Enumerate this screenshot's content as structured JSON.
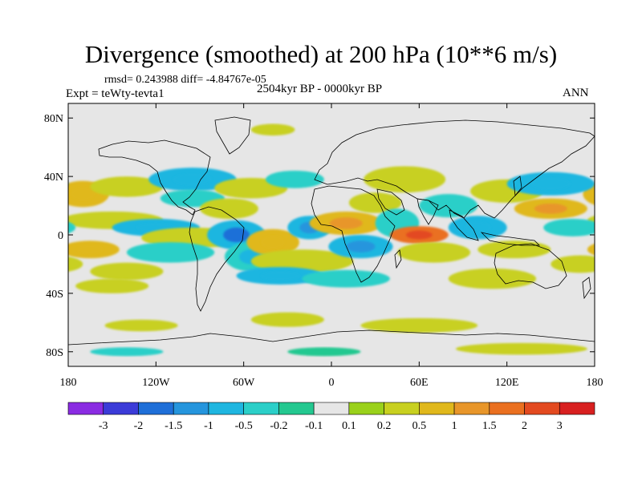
{
  "title": "Divergence (smoothed) at 200 hPa (10**6 m/s)",
  "stats": "rmsd= 0.243988 diff= -4.84767e-05",
  "experiment": "Expt = teWty-tevta1",
  "period": "2504kyr BP - 0000kyr BP",
  "season": "ANN",
  "chart_data": {
    "type": "heatmap",
    "projection": "cylindrical-equidistant",
    "lon_range": [
      -180,
      180
    ],
    "lat_range": [
      -90,
      90
    ],
    "xticks": [
      "180",
      "120W",
      "60W",
      "0",
      "60E",
      "120E",
      "180"
    ],
    "xtick_values": [
      -180,
      -120,
      -60,
      0,
      60,
      120,
      180
    ],
    "yticks": [
      "80N",
      "40N",
      "0",
      "40S",
      "80S"
    ],
    "ytick_values": [
      80,
      40,
      0,
      -40,
      -80
    ],
    "colorbar": {
      "labels": [
        "-3",
        "-2",
        "-1.5",
        "-1",
        "-0.5",
        "-0.2",
        "-0.1",
        "0.1",
        "0.2",
        "0.5",
        "1",
        "1.5",
        "2",
        "3"
      ],
      "levels": [
        -3,
        -2,
        -1.5,
        -1,
        -0.5,
        -0.2,
        -0.1,
        0.1,
        0.2,
        0.5,
        1,
        1.5,
        2,
        3
      ],
      "colors": [
        "#8a2be2",
        "#3b3bd8",
        "#1f6fd8",
        "#2595dd",
        "#1fb6e0",
        "#2bcfc8",
        "#24c890",
        "#e6e6e6",
        "#9ad11b",
        "#c8d020",
        "#e0b81c",
        "#e8962a",
        "#ea7020",
        "#e34a20",
        "#d82020"
      ]
    },
    "background_color": "#e6e6e6",
    "regions": [
      {
        "lon": -170,
        "lat": 28,
        "rlon": 18,
        "rlat": 9,
        "value": 0.5
      },
      {
        "lon": -150,
        "lat": 10,
        "rlon": 35,
        "rlat": 6,
        "value": 0.3
      },
      {
        "lon": -140,
        "lat": 33,
        "rlon": 25,
        "rlat": 7,
        "value": 0.2
      },
      {
        "lon": -95,
        "lat": 38,
        "rlon": 30,
        "rlat": 8,
        "value": -0.6
      },
      {
        "lon": -95,
        "lat": 25,
        "rlon": 22,
        "rlat": 6,
        "value": -0.3
      },
      {
        "lon": -70,
        "lat": 18,
        "rlon": 20,
        "rlat": 7,
        "value": 0.4
      },
      {
        "lon": -55,
        "lat": 32,
        "rlon": 25,
        "rlat": 7,
        "value": 0.3
      },
      {
        "lon": -25,
        "lat": 38,
        "rlon": 20,
        "rlat": 6,
        "value": -0.4
      },
      {
        "lon": -120,
        "lat": 5,
        "rlon": 30,
        "rlat": 6,
        "value": -0.6
      },
      {
        "lon": -95,
        "lat": -2,
        "rlon": 35,
        "rlat": 7,
        "value": 0.4
      },
      {
        "lon": -110,
        "lat": -12,
        "rlon": 30,
        "rlat": 7,
        "value": -0.3
      },
      {
        "lon": -165,
        "lat": -10,
        "rlon": 20,
        "rlat": 6,
        "value": 0.6
      },
      {
        "lon": -140,
        "lat": -25,
        "rlon": 25,
        "rlat": 6,
        "value": 0.3
      },
      {
        "lon": -65,
        "lat": 0,
        "rlon": 20,
        "rlat": 10,
        "value": -1.0
      },
      {
        "lon": -55,
        "lat": -15,
        "rlon": 18,
        "rlat": 10,
        "value": -0.5
      },
      {
        "lon": -40,
        "lat": -5,
        "rlon": 18,
        "rlat": 9,
        "value": 0.5
      },
      {
        "lon": -20,
        "lat": -18,
        "rlon": 35,
        "rlat": 8,
        "value": 0.3
      },
      {
        "lon": -35,
        "lat": -28,
        "rlon": 30,
        "rlat": 6,
        "value": -0.6
      },
      {
        "lon": -15,
        "lat": 5,
        "rlon": 15,
        "rlat": 8,
        "value": -0.8
      },
      {
        "lon": 10,
        "lat": 8,
        "rlon": 25,
        "rlat": 8,
        "value": 0.8
      },
      {
        "lon": 30,
        "lat": 22,
        "rlon": 18,
        "rlat": 7,
        "value": 0.4
      },
      {
        "lon": 20,
        "lat": -8,
        "rlon": 22,
        "rlat": 8,
        "value": -0.8
      },
      {
        "lon": 10,
        "lat": -30,
        "rlon": 30,
        "rlat": 6,
        "value": -0.4
      },
      {
        "lon": 45,
        "lat": 8,
        "rlon": 15,
        "rlat": 10,
        "value": -0.4
      },
      {
        "lon": 60,
        "lat": 0,
        "rlon": 20,
        "rlat": 6,
        "value": 1.6
      },
      {
        "lon": 70,
        "lat": -12,
        "rlon": 25,
        "rlat": 7,
        "value": 0.4
      },
      {
        "lon": 50,
        "lat": 38,
        "rlon": 28,
        "rlat": 9,
        "value": 0.4
      },
      {
        "lon": 80,
        "lat": 20,
        "rlon": 20,
        "rlat": 8,
        "value": -0.4
      },
      {
        "lon": 100,
        "lat": 5,
        "rlon": 20,
        "rlat": 8,
        "value": -0.6
      },
      {
        "lon": 120,
        "lat": 30,
        "rlon": 25,
        "rlat": 8,
        "value": 0.3
      },
      {
        "lon": 150,
        "lat": 35,
        "rlon": 30,
        "rlat": 8,
        "value": -0.6
      },
      {
        "lon": 150,
        "lat": 18,
        "rlon": 25,
        "rlat": 7,
        "value": 0.8
      },
      {
        "lon": 125,
        "lat": -10,
        "rlon": 25,
        "rlat": 6,
        "value": 0.4
      },
      {
        "lon": 110,
        "lat": -30,
        "rlon": 30,
        "rlat": 7,
        "value": 0.3
      },
      {
        "lon": 170,
        "lat": -20,
        "rlon": 20,
        "rlat": 6,
        "value": 0.3
      },
      {
        "lon": 165,
        "lat": 5,
        "rlon": 20,
        "rlat": 6,
        "value": -0.3
      },
      {
        "lon": -150,
        "lat": -35,
        "rlon": 25,
        "rlat": 5,
        "value": 0.2
      },
      {
        "lon": -130,
        "lat": -62,
        "rlon": 25,
        "rlat": 4,
        "value": 0.3
      },
      {
        "lon": -30,
        "lat": -58,
        "rlon": 25,
        "rlat": 5,
        "value": 0.3
      },
      {
        "lon": 60,
        "lat": -62,
        "rlon": 40,
        "rlat": 5,
        "value": 0.3
      },
      {
        "lon": -140,
        "lat": -80,
        "rlon": 25,
        "rlat": 3,
        "value": -0.3
      },
      {
        "lon": 130,
        "lat": -78,
        "rlon": 45,
        "rlat": 4,
        "value": 0.3
      },
      {
        "lon": -5,
        "lat": -80,
        "rlon": 25,
        "rlat": 3,
        "value": -0.2
      },
      {
        "lon": -40,
        "lat": 72,
        "rlon": 15,
        "rlat": 4,
        "value": 0.2
      }
    ]
  }
}
